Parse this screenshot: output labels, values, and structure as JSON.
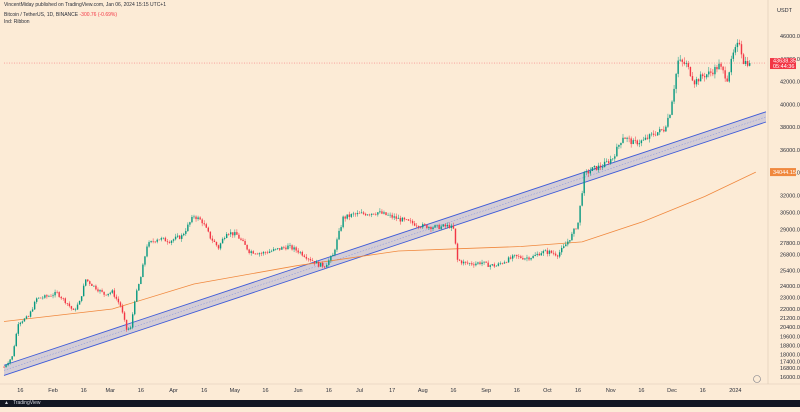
{
  "header": {
    "published": "VincentMiday published on TradingView.com, Jan 06, 2024 15:15 UTC+1",
    "symbol": "Bitcoin / TetherUS, 1D, BINANCE",
    "change": "-300.76 (-0.69%)",
    "indicator": "Ind: Ribbon"
  },
  "ticker_label": "USDT",
  "footer": {
    "brand": "TradingView"
  },
  "colors": {
    "background": "#fcebd6",
    "up": "#089981",
    "down": "#f23645",
    "trend_channel": "#3f5bd8",
    "ma": "#f0883e",
    "footer": "#131722"
  },
  "chart_data": {
    "type": "candlestick",
    "title": "Bitcoin / TetherUS, 1D, BINANCE",
    "ylim": [
      15400,
      47600
    ],
    "y_ticks": [
      16000,
      16800,
      17400,
      18000,
      18800,
      19600,
      20400,
      21200,
      22000,
      23000,
      24000,
      25400,
      26800,
      27800,
      29000,
      30500,
      32000,
      34000,
      36000,
      38000,
      40000,
      42000,
      44000,
      46000
    ],
    "x_ticks": [
      {
        "label": "16",
        "day": 15
      },
      {
        "label": "Feb",
        "day": 31
      },
      {
        "label": "16",
        "day": 46
      },
      {
        "label": "Mar",
        "day": 59
      },
      {
        "label": "16",
        "day": 74
      },
      {
        "label": "Apr",
        "day": 90
      },
      {
        "label": "16",
        "day": 105
      },
      {
        "label": "May",
        "day": 120
      },
      {
        "label": "16",
        "day": 135
      },
      {
        "label": "Jun",
        "day": 151
      },
      {
        "label": "16",
        "day": 166
      },
      {
        "label": "Jul",
        "day": 181
      },
      {
        "label": "17",
        "day": 197
      },
      {
        "label": "Aug",
        "day": 212
      },
      {
        "label": "16",
        "day": 227
      },
      {
        "label": "Sep",
        "day": 243
      },
      {
        "label": "16",
        "day": 258
      },
      {
        "label": "Oct",
        "day": 273
      },
      {
        "label": "16",
        "day": 288
      },
      {
        "label": "Nov",
        "day": 304
      },
      {
        "label": "16",
        "day": 319
      },
      {
        "label": "Dec",
        "day": 334
      },
      {
        "label": "16",
        "day": 349
      },
      {
        "label": "2024",
        "day": 365
      }
    ],
    "x_range_days": [
      7,
      380
    ],
    "last_price": {
      "value": 43638,
      "label": "43638.35",
      "timer": "05:44:36"
    },
    "ma_price": {
      "value": 34044,
      "label": "34044.15"
    },
    "price_anchors": [
      {
        "day": 7,
        "price": 16900
      },
      {
        "day": 11,
        "price": 17800
      },
      {
        "day": 14,
        "price": 20800
      },
      {
        "day": 19,
        "price": 21300
      },
      {
        "day": 23,
        "price": 22900
      },
      {
        "day": 28,
        "price": 23100
      },
      {
        "day": 33,
        "price": 23400
      },
      {
        "day": 38,
        "price": 22500
      },
      {
        "day": 41,
        "price": 21800
      },
      {
        "day": 44,
        "price": 22600
      },
      {
        "day": 47,
        "price": 24600
      },
      {
        "day": 51,
        "price": 24000
      },
      {
        "day": 56,
        "price": 23300
      },
      {
        "day": 60,
        "price": 23500
      },
      {
        "day": 64,
        "price": 22300
      },
      {
        "day": 67,
        "price": 20200
      },
      {
        "day": 69,
        "price": 20300
      },
      {
        "day": 71,
        "price": 22800
      },
      {
        "day": 74,
        "price": 24800
      },
      {
        "day": 77,
        "price": 27600
      },
      {
        "day": 82,
        "price": 28200
      },
      {
        "day": 88,
        "price": 28000
      },
      {
        "day": 94,
        "price": 28400
      },
      {
        "day": 100,
        "price": 30200
      },
      {
        "day": 104,
        "price": 29700
      },
      {
        "day": 108,
        "price": 28300
      },
      {
        "day": 112,
        "price": 27400
      },
      {
        "day": 116,
        "price": 28800
      },
      {
        "day": 121,
        "price": 28500
      },
      {
        "day": 127,
        "price": 27100
      },
      {
        "day": 133,
        "price": 26900
      },
      {
        "day": 140,
        "price": 27200
      },
      {
        "day": 146,
        "price": 27500
      },
      {
        "day": 151,
        "price": 27100
      },
      {
        "day": 156,
        "price": 26500
      },
      {
        "day": 161,
        "price": 25900
      },
      {
        "day": 164,
        "price": 25800
      },
      {
        "day": 168,
        "price": 26700
      },
      {
        "day": 173,
        "price": 30000
      },
      {
        "day": 178,
        "price": 30300
      },
      {
        "day": 184,
        "price": 30400
      },
      {
        "day": 190,
        "price": 30500
      },
      {
        "day": 197,
        "price": 30100
      },
      {
        "day": 204,
        "price": 29700
      },
      {
        "day": 212,
        "price": 29300
      },
      {
        "day": 219,
        "price": 29200
      },
      {
        "day": 225,
        "price": 29300
      },
      {
        "day": 227,
        "price": 29000
      },
      {
        "day": 229,
        "price": 26300
      },
      {
        "day": 233,
        "price": 26000
      },
      {
        "day": 237,
        "price": 26000
      },
      {
        "day": 241,
        "price": 26100
      },
      {
        "day": 243,
        "price": 25900
      },
      {
        "day": 248,
        "price": 25800
      },
      {
        "day": 252,
        "price": 26200
      },
      {
        "day": 257,
        "price": 26600
      },
      {
        "day": 262,
        "price": 26500
      },
      {
        "day": 266,
        "price": 26600
      },
      {
        "day": 270,
        "price": 27000
      },
      {
        "day": 274,
        "price": 27000
      },
      {
        "day": 278,
        "price": 26800
      },
      {
        "day": 281,
        "price": 27400
      },
      {
        "day": 285,
        "price": 28500
      },
      {
        "day": 288,
        "price": 29600
      },
      {
        "day": 291,
        "price": 33800
      },
      {
        "day": 295,
        "price": 34300
      },
      {
        "day": 300,
        "price": 34600
      },
      {
        "day": 305,
        "price": 35300
      },
      {
        "day": 310,
        "price": 37200
      },
      {
        "day": 315,
        "price": 36600
      },
      {
        "day": 320,
        "price": 36800
      },
      {
        "day": 325,
        "price": 37400
      },
      {
        "day": 330,
        "price": 37800
      },
      {
        "day": 333,
        "price": 39300
      },
      {
        "day": 337,
        "price": 43800
      },
      {
        "day": 341,
        "price": 43500
      },
      {
        "day": 345,
        "price": 42000
      },
      {
        "day": 349,
        "price": 42500
      },
      {
        "day": 353,
        "price": 42800
      },
      {
        "day": 357,
        "price": 43400
      },
      {
        "day": 361,
        "price": 42300
      },
      {
        "day": 364,
        "price": 44400
      },
      {
        "day": 367,
        "price": 45500
      },
      {
        "day": 369,
        "price": 43800
      },
      {
        "day": 372,
        "price": 43638
      }
    ],
    "trend_channel": {
      "start_day": 7,
      "start_price": 16600,
      "end_day": 380,
      "end_price": 38900,
      "width_price": 900
    },
    "moving_average": [
      {
        "day": 7,
        "price": 20900
      },
      {
        "day": 60,
        "price": 22000
      },
      {
        "day": 100,
        "price": 24200
      },
      {
        "day": 150,
        "price": 25800
      },
      {
        "day": 200,
        "price": 27100
      },
      {
        "day": 230,
        "price": 27300
      },
      {
        "day": 260,
        "price": 27500
      },
      {
        "day": 290,
        "price": 27900
      },
      {
        "day": 320,
        "price": 29700
      },
      {
        "day": 350,
        "price": 31900
      },
      {
        "day": 375,
        "price": 34044
      }
    ]
  }
}
